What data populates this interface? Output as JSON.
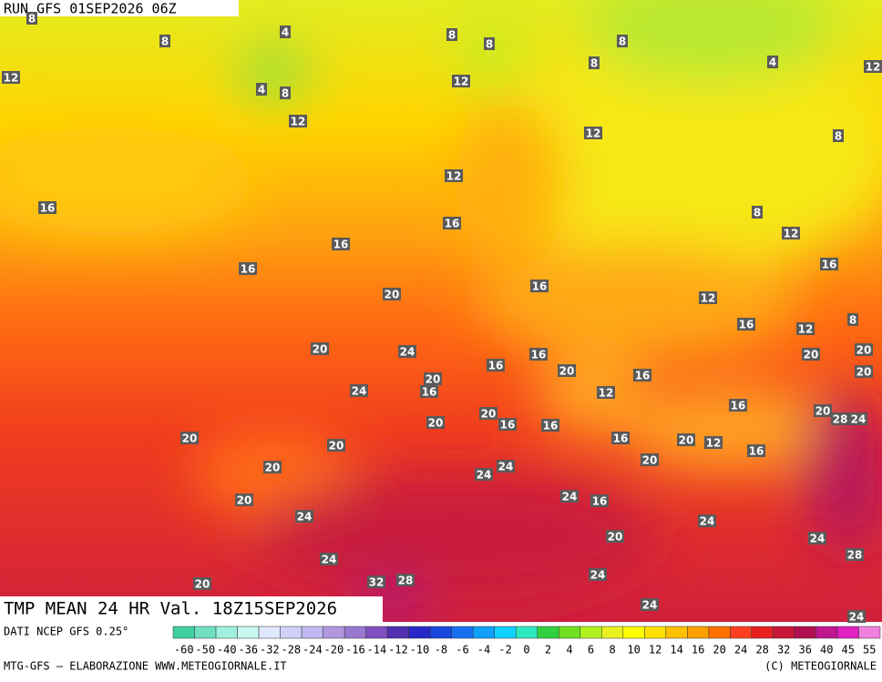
{
  "header": {
    "run": "RUN GFS 01SEP2026 06Z"
  },
  "title": "TMP MEAN 24 HR Val. 18Z15SEP2026",
  "contour_labels": [
    "8",
    "8",
    "4",
    "8",
    "8",
    "8",
    "4",
    "12",
    "12",
    "8",
    "4",
    "8",
    "12",
    "12",
    "12",
    "8",
    "16",
    "12",
    "16",
    "8",
    "12",
    "16",
    "16",
    "16",
    "16",
    "20",
    "12",
    "16",
    "12",
    "8",
    "20",
    "24",
    "20",
    "20",
    "16",
    "16",
    "20",
    "16",
    "20",
    "20",
    "16",
    "24",
    "12",
    "16",
    "20",
    "28",
    "24",
    "20",
    "20",
    "16",
    "16",
    "16",
    "20",
    "12",
    "16",
    "20",
    "20",
    "20",
    "20",
    "24",
    "24",
    "20",
    "24",
    "16",
    "24",
    "24",
    "24",
    "20",
    "28",
    "24",
    "24",
    "32",
    "28",
    "20",
    "24",
    "24"
  ],
  "colorbar": {
    "labels": [
      "-60",
      "-50",
      "-40",
      "-36",
      "-32",
      "-28",
      "-24",
      "-20",
      "-16",
      "-14",
      "-12",
      "-10",
      "-8",
      "-6",
      "-4",
      "-2",
      "0",
      "2",
      "4",
      "6",
      "8",
      "10",
      "12",
      "14",
      "16",
      "20",
      "24",
      "28",
      "32",
      "36",
      "40",
      "45",
      "55"
    ],
    "colors": [
      "#40d0a0",
      "#70e0c0",
      "#a0f0e0",
      "#c8f8f0",
      "#e0e8ff",
      "#d0d0f8",
      "#c0b8f0",
      "#b098e0",
      "#9878d0",
      "#8050c0",
      "#5030b0",
      "#2828c8",
      "#1848e0",
      "#1870f0",
      "#10a0f8",
      "#10d0ff",
      "#30e8c0",
      "#30d040",
      "#70e020",
      "#b0f020",
      "#e8f020",
      "#ffff00",
      "#ffe000",
      "#ffc000",
      "#ffa000",
      "#ff7000",
      "#ff4020",
      "#e82020",
      "#c81838",
      "#b01050",
      "#c01890",
      "#e020c0",
      "#f080e0"
    ]
  },
  "footer": {
    "source": "DATI NCEP GFS 0.25°",
    "credit": "MTG-GFS — ELABORAZIONE WWW.METEOGIORNALE.IT",
    "copyright": "(C) METEOGIORNALE"
  }
}
